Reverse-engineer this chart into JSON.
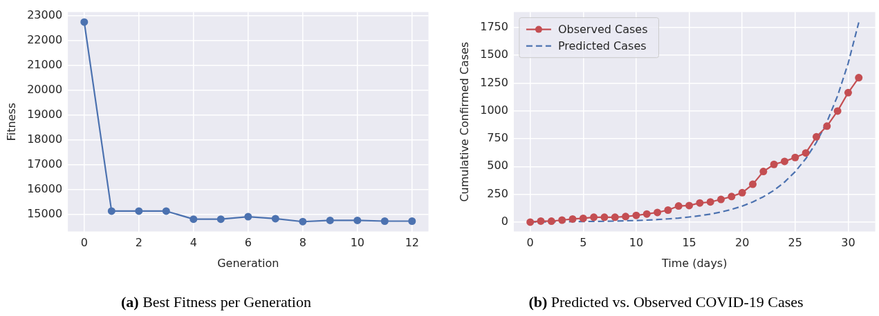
{
  "chart_data": [
    {
      "type": "line",
      "title": "(a) Best Fitness per Generation",
      "xlabel": "Generation",
      "ylabel": "Fitness",
      "x": [
        0,
        1,
        2,
        3,
        4,
        5,
        6,
        7,
        8,
        9,
        10,
        11,
        12
      ],
      "series": [
        {
          "color": "#4c72b0",
          "marker": "circle",
          "line_style": "solid",
          "values": [
            22750,
            15125,
            15125,
            15125,
            14800,
            14800,
            14900,
            14820,
            14700,
            14750,
            14750,
            14720,
            14720
          ]
        }
      ],
      "xlim": [
        -0.6,
        12.6
      ],
      "xticks": [
        0,
        2,
        4,
        6,
        8,
        10,
        12
      ],
      "ylim": [
        14300,
        23150
      ],
      "yticks": [
        15000,
        16000,
        17000,
        18000,
        19000,
        20000,
        21000,
        22000,
        23000
      ],
      "grid": true,
      "legend": false
    },
    {
      "type": "line",
      "title": "(b) Predicted vs. Observed COVID-19 Cases",
      "xlabel": "Time (days)",
      "ylabel": "Cumulative Confirmed Cases",
      "x": [
        0,
        1,
        2,
        3,
        4,
        5,
        6,
        7,
        8,
        9,
        10,
        11,
        12,
        13,
        14,
        15,
        16,
        17,
        18,
        19,
        20,
        21,
        22,
        23,
        24,
        25,
        26,
        27,
        28,
        29,
        30,
        31
      ],
      "series": [
        {
          "name": "Observed Cases",
          "color": "#c44e52",
          "marker": "circle",
          "line_style": "solid",
          "values": [
            0,
            9,
            8,
            18,
            28,
            34,
            44,
            44,
            44,
            50,
            60,
            73,
            87,
            108,
            145,
            149,
            172,
            181,
            204,
            230,
            264,
            340,
            455,
            519,
            546,
            581,
            622,
            767,
            863,
            999,
            1164,
            1299
          ]
        },
        {
          "name": "Predicted Cases",
          "color": "#4c72b0",
          "marker": "none",
          "line_style": "dashed",
          "values": [
            1,
            2,
            2,
            3,
            4,
            5,
            6,
            7,
            9,
            12,
            14,
            18,
            23,
            29,
            36,
            46,
            57,
            72,
            91,
            114,
            144,
            181,
            228,
            286,
            360,
            453,
            570,
            717,
            902,
            1135,
            1428,
            1796
          ]
        }
      ],
      "xlim": [
        -1.55,
        32.55
      ],
      "xticks": [
        0,
        5,
        10,
        15,
        20,
        25,
        30
      ],
      "ylim": [
        -85,
        1888
      ],
      "yticks": [
        0,
        250,
        500,
        750,
        1000,
        1250,
        1500,
        1750
      ],
      "grid": true,
      "legend": "top left"
    }
  ]
}
